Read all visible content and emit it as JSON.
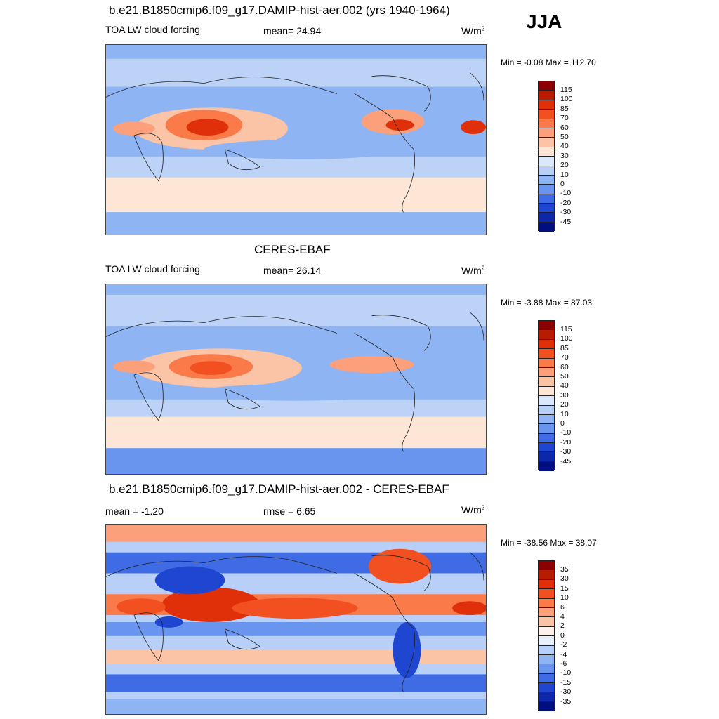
{
  "season": "JJA",
  "panels": [
    {
      "title": "b.e21.B1850cmip6.f09_g17.DAMIP-hist-aer.002 (yrs 1940-1964)",
      "left_label": "TOA LW cloud forcing",
      "center_label": "mean=  24.94",
      "units": "W/m",
      "units_exp": "2",
      "minmax": "Min =  -0.08 Max = 112.70",
      "colorbar_labels": [
        "115",
        "100",
        "85",
        "70",
        "60",
        "50",
        "40",
        "30",
        "20",
        "10",
        "0",
        "-10",
        "-20",
        "-30",
        "-45"
      ]
    },
    {
      "title": "CERES-EBAF",
      "left_label": "TOA LW cloud forcing",
      "center_label": "mean=  26.14",
      "units": "W/m",
      "units_exp": "2",
      "minmax": "Min =  -3.88 Max =  87.03",
      "colorbar_labels": [
        "115",
        "100",
        "85",
        "70",
        "60",
        "50",
        "40",
        "30",
        "20",
        "10",
        "0",
        "-10",
        "-20",
        "-30",
        "-45"
      ]
    },
    {
      "title": "b.e21.B1850cmip6.f09_g17.DAMIP-hist-aer.002 - CERES-EBAF",
      "left_label": "mean =  -1.20",
      "center_label": "rmse =   6.65",
      "units": "W/m",
      "units_exp": "2",
      "minmax": "Min = -38.56 Max =  38.07",
      "colorbar_labels": [
        "35",
        "30",
        "15",
        "10",
        "6",
        "4",
        "2",
        "0",
        "-2",
        "-4",
        "-6",
        "-10",
        "-15",
        "-30",
        "-35"
      ]
    }
  ],
  "colors": {
    "scale": [
      "#8b0000",
      "#b71c00",
      "#e0300a",
      "#f25020",
      "#fa7a4a",
      "#fba07a",
      "#fcc4a6",
      "#fde6d6",
      "#dbe8fb",
      "#b8d0f8",
      "#8fb4f4",
      "#6a95ee",
      "#3f6be4",
      "#1f46d0",
      "#0c28a8",
      "#000e80"
    ],
    "ocean_mid": "#bcd2f6",
    "ocean_low": "#8fb4f4",
    "tropics_warm": "#fbd9c4",
    "coast": "#222222"
  }
}
